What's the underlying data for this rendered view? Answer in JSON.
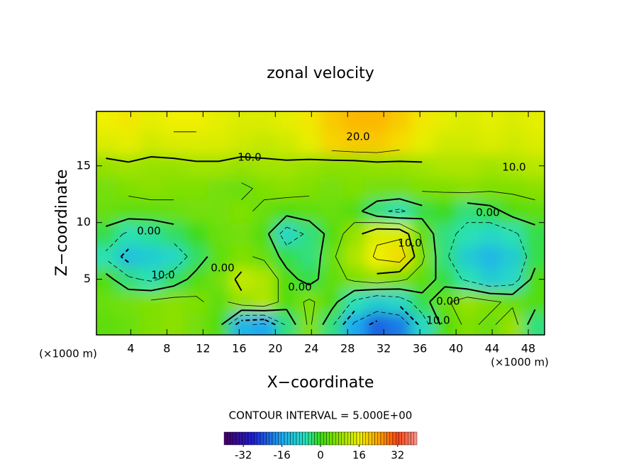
{
  "chart_data": {
    "type": "contour",
    "title": "zonal velocity",
    "x_label": "X−coordinate",
    "y_label": "Z−coordinate",
    "x_unit": "(×1000 m)",
    "y_unit": "(×1000 m)",
    "contour_interval": "CONTOUR INTERVAL = 5.000E+00",
    "xlim": [
      0.2,
      49.8
    ],
    "ylim": [
      0.1,
      19.8
    ],
    "xticks": [
      4,
      8,
      12,
      16,
      20,
      24,
      28,
      32,
      36,
      40,
      44,
      48
    ],
    "yticks": [
      5,
      10,
      15
    ],
    "x": [
      1.25,
      3.75,
      6.25,
      8.75,
      11.25,
      13.75,
      16.25,
      18.75,
      21.25,
      23.75,
      26.25,
      28.75,
      31.25,
      33.75,
      36.25,
      38.75,
      41.25,
      43.75,
      46.25,
      48.75
    ],
    "y": [
      1,
      3,
      5,
      7,
      9,
      11,
      13,
      15,
      17,
      19
    ],
    "z": [
      [
        3,
        4,
        6,
        7,
        5,
        2,
        -14,
        -16,
        -4,
        6,
        -4,
        -16,
        -22,
        -20,
        -8,
        2,
        6,
        4,
        8,
        -4
      ],
      [
        4,
        5,
        6,
        7,
        6,
        3,
        8,
        10,
        2,
        6,
        2,
        -6,
        -10,
        -8,
        -2,
        4,
        8,
        6,
        4,
        2
      ],
      [
        2,
        -4,
        -6,
        -3,
        2,
        5,
        12,
        10,
        2,
        -2,
        3,
        6,
        8,
        6,
        3,
        -2,
        -6,
        -10,
        -8,
        2
      ],
      [
        -6,
        -12,
        -10,
        -8,
        -3,
        3,
        6,
        4,
        -2,
        -4,
        4,
        10,
        16,
        18,
        6,
        -4,
        -10,
        -14,
        -10,
        -2
      ],
      [
        -2,
        -6,
        -5,
        -3,
        0,
        4,
        5,
        2,
        -8,
        -4,
        2,
        8,
        14,
        14,
        4,
        -4,
        -6,
        -8,
        -6,
        -2
      ],
      [
        4,
        3,
        3,
        4,
        5,
        5,
        6,
        4,
        2,
        3,
        4,
        2,
        -4,
        -6,
        -2,
        0,
        -4,
        -2,
        2,
        3
      ],
      [
        5,
        6,
        7,
        6,
        6,
        5,
        4,
        6,
        7,
        6,
        5,
        6,
        5,
        5,
        6,
        6,
        7,
        6,
        6,
        7
      ],
      [
        8,
        9,
        8,
        8,
        9,
        9,
        8,
        9,
        9,
        8,
        7,
        7,
        8,
        8,
        9,
        10,
        10,
        9,
        10,
        11
      ],
      [
        14,
        15,
        13,
        14,
        14,
        14,
        13,
        12,
        13,
        15,
        19,
        20,
        20,
        18,
        15,
        13,
        13,
        14,
        13,
        14
      ],
      [
        16,
        17,
        15,
        16,
        16,
        15,
        14,
        14,
        15,
        17,
        20,
        22,
        22,
        20,
        17,
        15,
        14,
        15,
        14,
        15
      ]
    ],
    "contour_levels": [
      -20,
      -15,
      -10,
      -5,
      0,
      5,
      10,
      15,
      20
    ],
    "contour_labels": [
      "20.0",
      "10.0",
      "10.0",
      "0.00",
      "0.00",
      "10.0",
      "10.0",
      "0.00",
      "0.00",
      "0.00",
      "10.0"
    ],
    "colorbar": {
      "clim": [
        -40,
        40
      ],
      "ticks": [
        -32,
        -16,
        0,
        16,
        32
      ]
    }
  }
}
